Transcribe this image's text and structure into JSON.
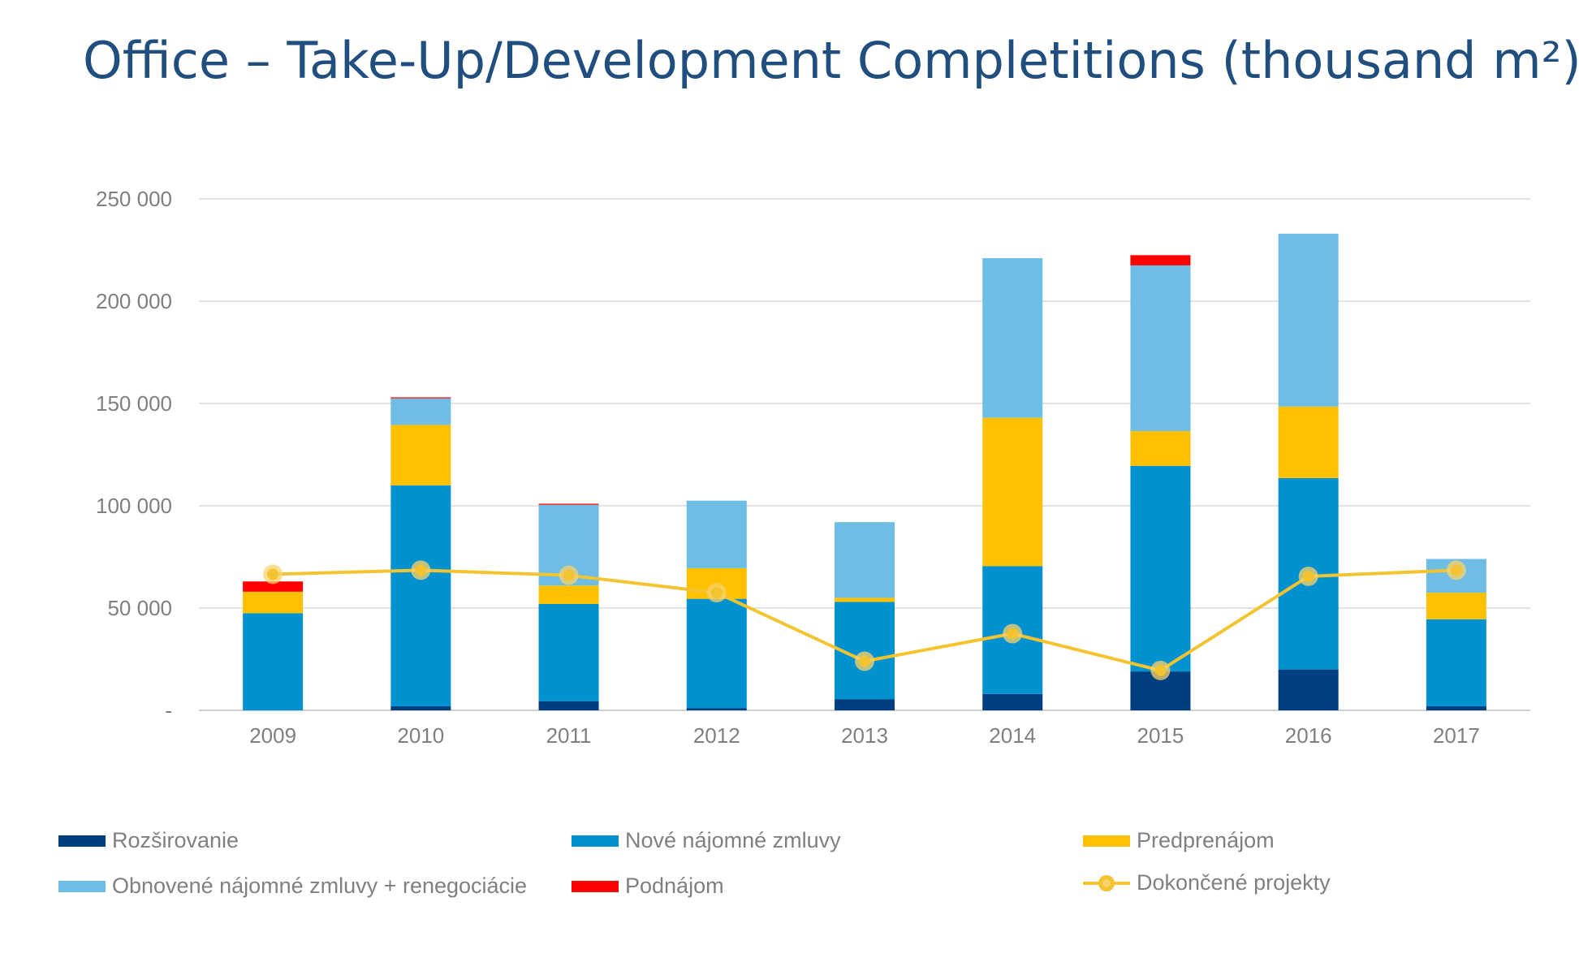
{
  "title": "Office – Take-Up/Development Completitions (thousand m²)",
  "chart_data": {
    "type": "bar",
    "stacked": true,
    "title": "Office – Take-Up/Development Completitions (thousand m²)",
    "xlabel": "",
    "ylabel": "",
    "ylim": [
      0,
      250000
    ],
    "yticks": [
      {
        "value": 0,
        "label": "-"
      },
      {
        "value": 50000,
        "label": "50 000"
      },
      {
        "value": 100000,
        "label": "100 000"
      },
      {
        "value": 150000,
        "label": "150 000"
      },
      {
        "value": 200000,
        "label": "200 000"
      },
      {
        "value": 250000,
        "label": "250 000"
      }
    ],
    "grid": true,
    "categories": [
      "2009",
      "2010",
      "2011",
      "2012",
      "2013",
      "2014",
      "2015",
      "2016",
      "2017"
    ],
    "series": [
      {
        "name": "Rozširovanie",
        "color": "#003f7f",
        "values": [
          0,
          2000,
          4500,
          1000,
          5500,
          8000,
          19000,
          20000,
          2000
        ]
      },
      {
        "name": "Nové nájomné zmluvy",
        "color": "#0091d0",
        "values": [
          47500,
          108000,
          47500,
          53500,
          47500,
          62500,
          100500,
          93500,
          42500
        ]
      },
      {
        "name": "Predprenájom",
        "color": "#ffc000",
        "values": [
          10500,
          29500,
          9000,
          15000,
          2000,
          72500,
          17000,
          35000,
          13000
        ]
      },
      {
        "name": "Obnovené nájomné zmluvy + renegociácie",
        "color": "#6dbde4",
        "values": [
          0,
          13000,
          39500,
          33000,
          37000,
          78000,
          81000,
          84500,
          16500
        ]
      },
      {
        "name": "Podnájom",
        "color": "#ff0000",
        "values": [
          5000,
          500,
          500,
          0,
          0,
          0,
          5000,
          0,
          0
        ]
      }
    ],
    "line_series": {
      "name": "Dokončené projekty",
      "color": "#f4c430",
      "marker_color": "#f9d36b",
      "values": [
        66500,
        68500,
        66000,
        57500,
        24000,
        37500,
        19500,
        65500,
        68500
      ]
    },
    "legend_position": "bottom"
  },
  "legend": {
    "items": [
      {
        "label": "Rozširovanie",
        "color": "#003f7f",
        "kind": "bar"
      },
      {
        "label": "Nové nájomné zmluvy",
        "color": "#0091d0",
        "kind": "bar"
      },
      {
        "label": "Predprenájom",
        "color": "#ffc000",
        "kind": "bar"
      },
      {
        "label": "Obnovené nájomné zmluvy + renegociácie",
        "color": "#6dbde4",
        "kind": "bar"
      },
      {
        "label": "Podnájom",
        "color": "#ff0000",
        "kind": "bar"
      },
      {
        "label": "Dokončené projekty",
        "color": "#f4c430",
        "kind": "line"
      }
    ]
  }
}
